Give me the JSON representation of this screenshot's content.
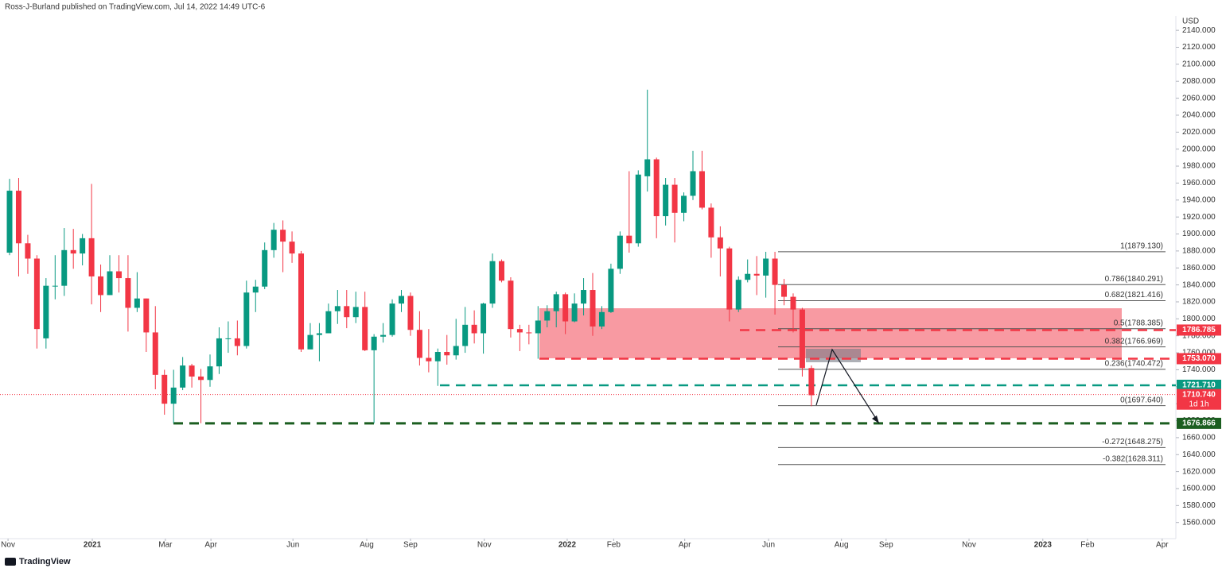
{
  "chart_data": {
    "type": "candlestick",
    "header": "Ross-J-Burland published on TradingView.com, Jul 14, 2022 14:49 UTC-6",
    "currency": "USD",
    "footer": "TradingView",
    "up_color": "#089981",
    "down_color": "#f23645",
    "open": [
      1878,
      1951,
      1889,
      1871,
      1777,
      1839,
      1839,
      1881,
      1877,
      1895,
      1850,
      1828,
      1856,
      1848,
      1813,
      1824,
      1784,
      1734,
      1700,
      1719,
      1745,
      1732,
      1728,
      1744,
      1777,
      1777,
      1768,
      1831,
      1838,
      1881,
      1905,
      1891,
      1877,
      1764,
      1781,
      1783,
      1809,
      1815,
      1802,
      1814,
      1763,
      1779,
      1781,
      1818,
      1827,
      1787,
      1754,
      1750,
      1761,
      1757,
      1768,
      1793,
      1783,
      1818,
      1868,
      1845,
      1788,
      1784,
      1783,
      1798,
      1809,
      1829,
      1797,
      1818,
      1834,
      1791,
      1808,
      1859,
      1898,
      1889,
      1968,
      1988,
      1921,
      1958,
      1925,
      1945,
      1974,
      1931,
      1896,
      1883,
      1811,
      1846,
      1853,
      1851,
      1871,
      1840,
      1826,
      1811,
      1742
    ],
    "high": [
      1965,
      1966,
      1899,
      1875,
      1848,
      1875,
      1907,
      1906,
      1900,
      1959,
      1864,
      1875,
      1875,
      1875,
      1855,
      1824,
      1815,
      1740,
      1740,
      1755,
      1747,
      1741,
      1758,
      1790,
      1797,
      1798,
      1845,
      1846,
      1890,
      1913,
      1916,
      1903,
      1880,
      1795,
      1795,
      1818,
      1834,
      1834,
      1832,
      1832,
      1782,
      1795,
      1823,
      1834,
      1831,
      1809,
      1788,
      1765,
      1781,
      1800,
      1814,
      1810,
      1819,
      1877,
      1870,
      1849,
      1793,
      1793,
      1815,
      1816,
      1832,
      1831,
      1830,
      1848,
      1854,
      1815,
      1865,
      1903,
      1974,
      1975,
      2070,
      1990,
      1966,
      1966,
      1949,
      1998,
      1998,
      1936,
      1909,
      1885,
      1850,
      1870,
      1874,
      1879,
      1879,
      1847,
      1830,
      1813,
      1745
    ],
    "low": [
      1875,
      1850,
      1853,
      1765,
      1765,
      1823,
      1827,
      1859,
      1863,
      1817,
      1808,
      1828,
      1831,
      1785,
      1808,
      1761,
      1717,
      1687,
      1677,
      1716,
      1719,
      1677,
      1720,
      1735,
      1760,
      1757,
      1765,
      1808,
      1835,
      1872,
      1855,
      1866,
      1761,
      1768,
      1750,
      1783,
      1794,
      1789,
      1795,
      1762,
      1677,
      1772,
      1779,
      1808,
      1780,
      1745,
      1737,
      1721,
      1746,
      1752,
      1760,
      1771,
      1759,
      1813,
      1843,
      1778,
      1762,
      1770,
      1753,
      1790,
      1790,
      1782,
      1796,
      1804,
      1780,
      1788,
      1807,
      1853,
      1878,
      1885,
      1950,
      1895,
      1910,
      1890,
      1915,
      1940,
      1929,
      1872,
      1850,
      1797,
      1808,
      1843,
      1828,
      1825,
      1805,
      1816,
      1784,
      1732,
      1697
    ],
    "close": [
      1951,
      1889,
      1871,
      1788,
      1839,
      1839,
      1881,
      1877,
      1895,
      1850,
      1828,
      1856,
      1848,
      1813,
      1824,
      1784,
      1734,
      1700,
      1719,
      1745,
      1732,
      1728,
      1744,
      1777,
      1777,
      1768,
      1831,
      1838,
      1881,
      1905,
      1891,
      1877,
      1764,
      1781,
      1783,
      1809,
      1815,
      1802,
      1814,
      1763,
      1779,
      1781,
      1818,
      1827,
      1787,
      1754,
      1750,
      1761,
      1757,
      1768,
      1793,
      1783,
      1818,
      1868,
      1845,
      1788,
      1784,
      1783,
      1798,
      1809,
      1829,
      1797,
      1818,
      1834,
      1791,
      1808,
      1859,
      1898,
      1889,
      1970,
      1988,
      1921,
      1958,
      1925,
      1945,
      1974,
      1931,
      1896,
      1883,
      1811,
      1846,
      1853,
      1851,
      1871,
      1840,
      1826,
      1811,
      1742,
      1710
    ],
    "xlim": [
      -1.05,
      128
    ],
    "xticks": [
      {
        "value": -0.17,
        "label": "Nov"
      },
      {
        "value": 9.08,
        "label": "2021"
      },
      {
        "value": 17.1,
        "label": "Mar"
      },
      {
        "value": 22.1,
        "label": "Apr"
      },
      {
        "value": 31.1,
        "label": "Jun"
      },
      {
        "value": 39.2,
        "label": "Aug"
      },
      {
        "value": 44.0,
        "label": "Sep"
      },
      {
        "value": 52.1,
        "label": "Nov"
      },
      {
        "value": 61.2,
        "label": "2022"
      },
      {
        "value": 66.3,
        "label": "Feb"
      },
      {
        "value": 74.1,
        "label": "Apr"
      },
      {
        "value": 83.3,
        "label": "Jun"
      },
      {
        "value": 91.3,
        "label": "Aug"
      },
      {
        "value": 96.2,
        "label": "Sep"
      },
      {
        "value": 105.3,
        "label": "Nov"
      },
      {
        "value": 113.4,
        "label": "2023"
      },
      {
        "value": 118.3,
        "label": "Feb"
      },
      {
        "value": 126.5,
        "label": "Apr"
      }
    ],
    "ylim": [
      1541,
      2157
    ],
    "yticks": [
      {
        "value": 1560,
        "label": "1560.000"
      },
      {
        "value": 1580,
        "label": "1580.000"
      },
      {
        "value": 1600,
        "label": "1600.000"
      },
      {
        "value": 1620,
        "label": "1620.000"
      },
      {
        "value": 1640,
        "label": "1640.000"
      },
      {
        "value": 1660,
        "label": "1660.000"
      },
      {
        "value": 1680,
        "label": "1680.000"
      },
      {
        "value": 1700,
        "label": "1700.000"
      },
      {
        "value": 1720,
        "label": "1720.000"
      },
      {
        "value": 1740,
        "label": "1740.000"
      },
      {
        "value": 1760,
        "label": "1760.000"
      },
      {
        "value": 1780,
        "label": "1780.000"
      },
      {
        "value": 1800,
        "label": "1800.000"
      },
      {
        "value": 1820,
        "label": "1820.000"
      },
      {
        "value": 1840,
        "label": "1840.000"
      },
      {
        "value": 1860,
        "label": "1860.000"
      },
      {
        "value": 1880,
        "label": "1880.000"
      },
      {
        "value": 1900,
        "label": "1900.000"
      },
      {
        "value": 1920,
        "label": "1920.000"
      },
      {
        "value": 1940,
        "label": "1940.000"
      },
      {
        "value": 1960,
        "label": "1960.000"
      },
      {
        "value": 1980,
        "label": "1980.000"
      },
      {
        "value": 2000,
        "label": "2000.000"
      },
      {
        "value": 2020,
        "label": "2020.000"
      },
      {
        "value": 2040,
        "label": "2040.000"
      },
      {
        "value": 2060,
        "label": "2060.000"
      },
      {
        "value": 2080,
        "label": "2080.000"
      },
      {
        "value": 2100,
        "label": "2100.000"
      },
      {
        "value": 2120,
        "label": "2120.000"
      },
      {
        "value": 2140,
        "label": "2140.000"
      }
    ],
    "levels": [
      {
        "value": 1786.785,
        "label": "1786.785",
        "color": "#f23645"
      },
      {
        "value": 1753.07,
        "label": "1753.070",
        "color": "#f23645"
      },
      {
        "value": 1721.71,
        "label": "1721.710",
        "color": "#089981"
      },
      {
        "value": 1676.866,
        "label": "1676.866",
        "color": "#1b5e20"
      }
    ],
    "last_price": {
      "value": 1710.74,
      "label": "1710.740",
      "countdown": "1d 1h",
      "color": "#f23645"
    },
    "fib": [
      {
        "value": 1879.13,
        "label": "1(1879.130)"
      },
      {
        "value": 1840.291,
        "label": "0.786(1840.291)"
      },
      {
        "value": 1821.416,
        "label": "0.682(1821.416)"
      },
      {
        "value": 1788.385,
        "label": "0.5(1788.385)"
      },
      {
        "value": 1766.969,
        "label": "0.382(1766.969)"
      },
      {
        "value": 1740.472,
        "label": "0.236(1740.472)"
      },
      {
        "value": 1697.64,
        "label": "0(1697.640)"
      },
      {
        "value": 1648.275,
        "label": "-0.272(1648.275)"
      },
      {
        "value": 1628.311,
        "label": "-0.382(1628.311)"
      }
    ]
  }
}
